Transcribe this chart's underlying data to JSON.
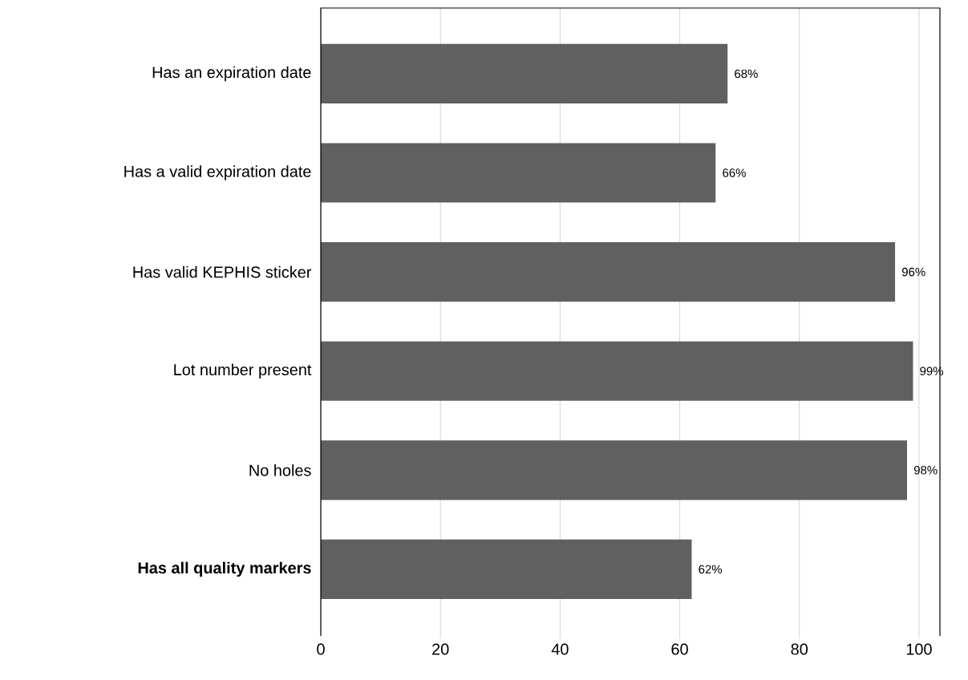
{
  "chart_data": {
    "type": "bar",
    "orientation": "horizontal",
    "categories": [
      "Has an expiration date",
      "Has a valid expiration date",
      "Has valid KEPHIS sticker",
      "Lot number present",
      "No holes",
      "**Has all quality markers**"
    ],
    "values": [
      68,
      66,
      96,
      99,
      98,
      62
    ],
    "value_labels": [
      "68%",
      "66%",
      "96%",
      "99%",
      "98%",
      "62%"
    ],
    "color": "#606060",
    "xlim": [
      0,
      103.5
    ],
    "xticks": [
      0,
      20,
      40,
      60,
      80,
      100
    ],
    "grid": "x"
  }
}
